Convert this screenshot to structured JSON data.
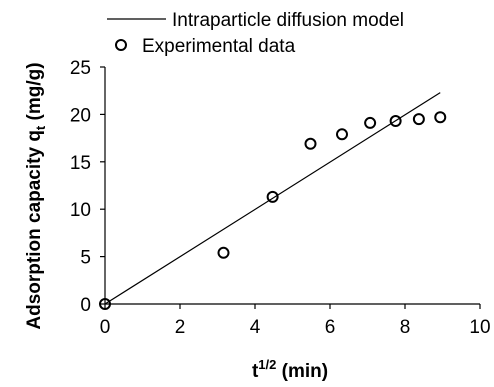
{
  "chart_data": {
    "type": "scatter",
    "xlabel": "t",
    "xlabel_sup": "1/2",
    "xlabel_unit": " (min)",
    "ylabel": "Adsorption capacity q",
    "ylabel_sub": "t",
    "ylabel_unit": " (mg/g)",
    "xlim": [
      0,
      10
    ],
    "ylim": [
      0,
      25
    ],
    "xticks": [
      "0",
      "2",
      "4",
      "6",
      "8",
      "10"
    ],
    "yticks": [
      "0",
      "5",
      "10",
      "15",
      "20",
      "25"
    ],
    "grid": false,
    "legend_position": "top",
    "series": [
      {
        "name": "Intraparticle diffusion model",
        "kind": "line",
        "color": "#000000",
        "x": [
          0,
          8.94
        ],
        "y": [
          0,
          22.3
        ]
      },
      {
        "name": "Experimental data",
        "kind": "scatter",
        "marker": "open-circle",
        "color": "#000000",
        "x": [
          0,
          3.16,
          4.47,
          5.48,
          6.32,
          7.07,
          7.75,
          8.37,
          8.94
        ],
        "y": [
          0,
          5.4,
          11.3,
          16.9,
          17.9,
          19.1,
          19.3,
          19.5,
          19.7
        ]
      }
    ]
  }
}
